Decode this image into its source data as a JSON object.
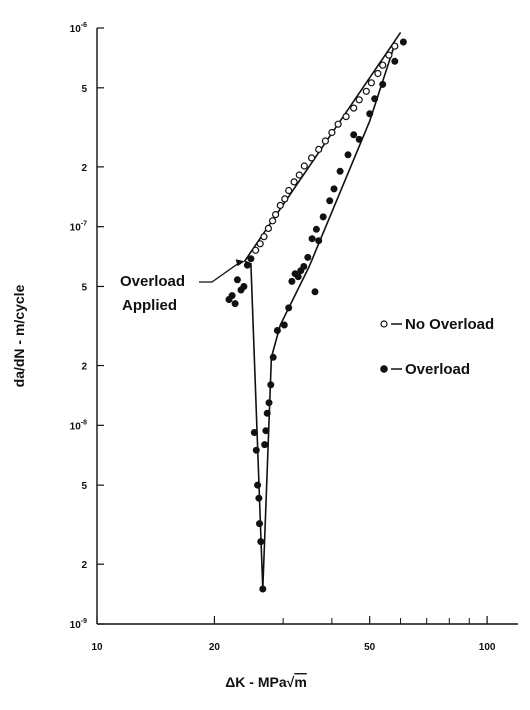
{
  "chart_data": {
    "type": "scatter",
    "xlabel": "ΔK - MPa√m",
    "ylabel": "da/dN - m/cycle",
    "xscale": "log",
    "yscale": "log",
    "xlim": [
      10,
      120
    ],
    "ylim": [
      1e-09,
      1e-06
    ],
    "grid": false,
    "legend_position": "right",
    "x_ticks": [
      {
        "value": 10,
        "label": "10"
      },
      {
        "value": 20,
        "label": "20"
      },
      {
        "value": 50,
        "label": "50"
      },
      {
        "value": 100,
        "label": "100"
      }
    ],
    "x_minor_ticks": [
      30,
      40,
      60,
      70,
      80,
      90
    ],
    "y_ticks": [
      {
        "value": 1e-09,
        "base": "10",
        "exp": "-9"
      },
      {
        "value": 2e-09,
        "label": "2"
      },
      {
        "value": 5e-09,
        "label": "5"
      },
      {
        "value": 1e-08,
        "base": "10",
        "exp": "-8"
      },
      {
        "value": 2e-08,
        "label": "2"
      },
      {
        "value": 5e-08,
        "label": "5"
      },
      {
        "value": 1e-07,
        "base": "10",
        "exp": "-7"
      },
      {
        "value": 2e-07,
        "label": "2"
      },
      {
        "value": 5e-07,
        "label": "5"
      },
      {
        "value": 1e-06,
        "base": "10",
        "exp": "-6"
      }
    ],
    "series": [
      {
        "name": "No Overload",
        "marker": "open-circle",
        "points": [
          [
            25.5,
            7.6e-08
          ],
          [
            26.2,
            8.2e-08
          ],
          [
            26.8,
            8.9e-08
          ],
          [
            27.5,
            9.8e-08
          ],
          [
            28.2,
            1.07e-07
          ],
          [
            28.7,
            1.15e-07
          ],
          [
            29.5,
            1.28e-07
          ],
          [
            30.3,
            1.38e-07
          ],
          [
            31.0,
            1.52e-07
          ],
          [
            32.0,
            1.68e-07
          ],
          [
            33.0,
            1.82e-07
          ],
          [
            34.0,
            2.02e-07
          ],
          [
            35.5,
            2.22e-07
          ],
          [
            37.0,
            2.45e-07
          ],
          [
            38.5,
            2.7e-07
          ],
          [
            40.0,
            2.98e-07
          ],
          [
            41.5,
            3.28e-07
          ],
          [
            43.5,
            3.58e-07
          ],
          [
            45.5,
            3.95e-07
          ],
          [
            47.0,
            4.35e-07
          ],
          [
            49.0,
            4.8e-07
          ],
          [
            50.5,
            5.3e-07
          ],
          [
            52.5,
            5.9e-07
          ],
          [
            54.0,
            6.5e-07
          ],
          [
            56.0,
            7.3e-07
          ],
          [
            58.0,
            8.1e-07
          ]
        ]
      },
      {
        "name": "Overload",
        "marker": "filled-circle",
        "points": [
          [
            21.8,
            4.3e-08
          ],
          [
            22.2,
            4.5e-08
          ],
          [
            22.6,
            4.1e-08
          ],
          [
            22.9,
            5.4e-08
          ],
          [
            23.4,
            4.8e-08
          ],
          [
            23.8,
            5e-08
          ],
          [
            24.3,
            6.4e-08
          ],
          [
            24.8,
            6.9e-08
          ],
          [
            25.3,
            9.2e-09
          ],
          [
            25.6,
            7.5e-09
          ],
          [
            25.8,
            5e-09
          ],
          [
            26.0,
            4.3e-09
          ],
          [
            26.1,
            3.2e-09
          ],
          [
            26.3,
            2.6e-09
          ],
          [
            26.6,
            1.5e-09
          ],
          [
            26.9,
            8e-09
          ],
          [
            27.1,
            9.4e-09
          ],
          [
            27.3,
            1.15e-08
          ],
          [
            27.6,
            1.3e-08
          ],
          [
            27.9,
            1.6e-08
          ],
          [
            28.3,
            2.2e-08
          ],
          [
            29.0,
            3e-08
          ],
          [
            30.2,
            3.2e-08
          ],
          [
            31.0,
            3.9e-08
          ],
          [
            31.6,
            5.3e-08
          ],
          [
            32.2,
            5.8e-08
          ],
          [
            32.8,
            5.6e-08
          ],
          [
            33.3,
            6e-08
          ],
          [
            33.9,
            6.3e-08
          ],
          [
            34.7,
            7e-08
          ],
          [
            35.6,
            8.7e-08
          ],
          [
            36.2,
            4.7e-08
          ],
          [
            36.5,
            9.7e-08
          ],
          [
            37.0,
            8.5e-08
          ],
          [
            38.0,
            1.12e-07
          ],
          [
            39.5,
            1.35e-07
          ],
          [
            40.5,
            1.55e-07
          ],
          [
            42.0,
            1.9e-07
          ],
          [
            44.0,
            2.3e-07
          ],
          [
            45.5,
            2.9e-07
          ],
          [
            47.0,
            2.75e-07
          ],
          [
            50.0,
            3.7e-07
          ],
          [
            51.5,
            4.4e-07
          ],
          [
            54.0,
            5.2e-07
          ],
          [
            58.0,
            6.8e-07
          ],
          [
            61.0,
            8.5e-07
          ]
        ]
      }
    ],
    "fit_lines": [
      {
        "series": "No Overload",
        "points": [
          [
            23.9,
            6.7e-08
          ],
          [
            60,
            9.5e-07
          ]
        ]
      },
      {
        "series": "Overload",
        "points": [
          [
            23.9,
            6.7e-08
          ],
          [
            24.8,
            6.5e-08
          ],
          [
            26.6,
            1.5e-09
          ],
          [
            28.0,
            2.2e-08
          ],
          [
            29.5,
            3.2e-08
          ],
          [
            35,
            6.3e-08
          ],
          [
            50,
            3.4e-07
          ],
          [
            58,
            8.3e-07
          ]
        ]
      }
    ],
    "annotations": [
      {
        "lines": [
          "Overload",
          "Applied"
        ],
        "arrow_to": [
          23.9,
          6.7e-08
        ]
      }
    ],
    "legend": [
      {
        "series": "No Overload",
        "marker": "open-circle",
        "label": "No Overload"
      },
      {
        "series": "Overload",
        "marker": "filled-circle",
        "label": "Overload"
      }
    ]
  }
}
